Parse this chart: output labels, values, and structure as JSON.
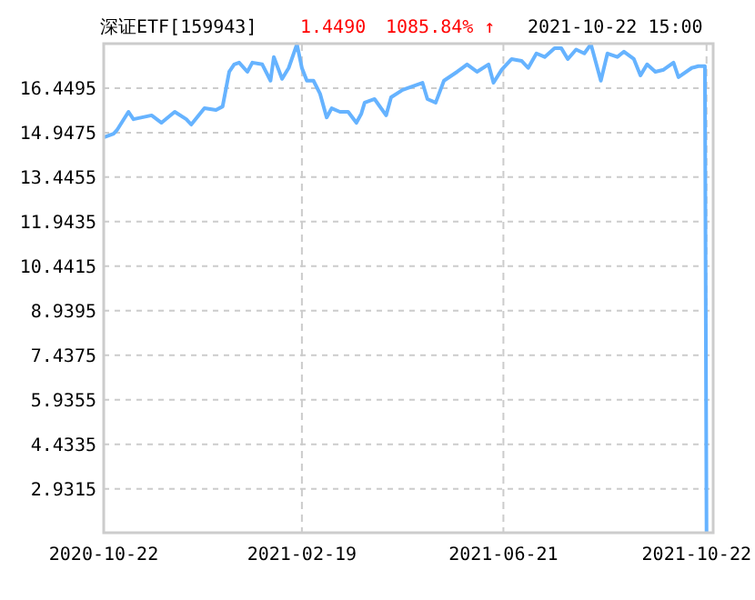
{
  "chart_data": {
    "type": "line",
    "title": "深证ETF[159943]",
    "annotations": [
      "1.4490",
      "1085.84% ↑",
      "2021-10-22 15:00"
    ],
    "x": [
      "2020-10-22",
      "2020-10-28",
      "2020-10-30",
      "2020-11-06",
      "2020-11-09",
      "2020-11-20",
      "2020-11-26",
      "2020-12-04",
      "2020-12-11",
      "2020-12-14",
      "2020-12-22",
      "2020-12-29",
      "2021-01-02",
      "2021-01-06",
      "2021-01-09",
      "2021-01-12",
      "2021-01-17",
      "2021-01-20",
      "2021-01-26",
      "2021-01-31",
      "2021-02-02",
      "2021-02-07",
      "2021-02-11",
      "2021-02-16",
      "2021-02-19",
      "2021-02-22",
      "2021-02-26",
      "2021-03-02",
      "2021-03-06",
      "2021-03-09",
      "2021-03-14",
      "2021-03-19",
      "2021-03-24",
      "2021-03-27",
      "2021-03-29",
      "2021-04-04",
      "2021-04-11",
      "2021-04-14",
      "2021-04-21",
      "2021-05-03",
      "2021-05-06",
      "2021-05-11",
      "2021-05-16",
      "2021-05-24",
      "2021-05-30",
      "2021-06-05",
      "2021-06-12",
      "2021-06-15",
      "2021-06-20",
      "2021-06-26",
      "2021-07-02",
      "2021-07-06",
      "2021-07-11",
      "2021-07-16",
      "2021-07-22",
      "2021-07-26",
      "2021-07-30",
      "2021-08-04",
      "2021-08-09",
      "2021-08-13",
      "2021-08-19",
      "2021-08-23",
      "2021-08-29",
      "2021-09-02",
      "2021-09-08",
      "2021-09-12",
      "2021-09-16",
      "2021-09-21",
      "2021-09-26",
      "2021-10-02",
      "2021-10-05",
      "2021-10-13",
      "2021-10-17",
      "2021-10-21",
      "2021-10-22"
    ],
    "series": [
      {
        "color": "#66b3ff",
        "values": [
          14.79,
          14.91,
          15.03,
          15.65,
          15.4,
          15.53,
          15.28,
          15.65,
          15.4,
          15.22,
          15.77,
          15.71,
          15.83,
          17.0,
          17.25,
          17.31,
          17.0,
          17.31,
          17.25,
          16.7,
          17.5,
          16.76,
          17.13,
          17.93,
          17.13,
          16.7,
          16.7,
          16.26,
          15.46,
          15.77,
          15.65,
          15.65,
          15.28,
          15.59,
          15.96,
          16.08,
          15.53,
          16.14,
          16.39,
          16.63,
          16.08,
          15.96,
          16.7,
          17.0,
          17.25,
          17.0,
          17.25,
          16.63,
          17.07,
          17.43,
          17.37,
          17.13,
          17.62,
          17.5,
          17.8,
          17.8,
          17.43,
          17.75,
          17.62,
          17.93,
          16.7,
          17.62,
          17.5,
          17.68,
          17.43,
          16.88,
          17.25,
          17.0,
          17.07,
          17.31,
          16.82,
          17.13,
          17.19,
          17.19,
          1.449
        ]
      }
    ],
    "xlim": [
      "2020-10-22",
      "2021-10-26"
    ],
    "ylim": [
      1.449,
      17.95
    ],
    "xticks": [
      "2020-10-22",
      "2021-02-19",
      "2021-06-21",
      "2021-10-22"
    ],
    "yticks": [
      2.9315,
      4.4335,
      5.9355,
      7.4375,
      8.9395,
      10.4415,
      11.9435,
      13.4455,
      14.9475,
      16.4495
    ],
    "grid": true,
    "marker": "none",
    "line_style": "solid"
  }
}
